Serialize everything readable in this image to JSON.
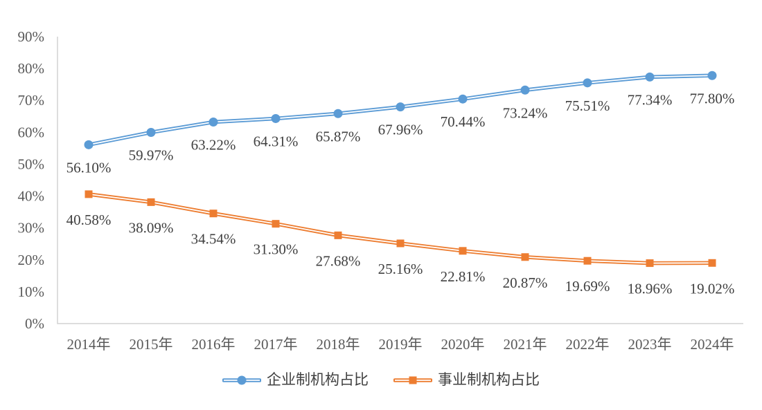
{
  "chart_data": {
    "type": "line",
    "title": "",
    "xlabel": "",
    "ylabel": "",
    "categories": [
      "2014年",
      "2015年",
      "2016年",
      "2017年",
      "2018年",
      "2019年",
      "2020年",
      "2021年",
      "2022年",
      "2023年",
      "2024年"
    ],
    "series": [
      {
        "name": "企业制机构占比",
        "color": "#5B9BD5",
        "marker": "circle",
        "values": [
          56.1,
          59.97,
          63.22,
          64.31,
          65.87,
          67.96,
          70.44,
          73.24,
          75.51,
          77.34,
          77.8
        ],
        "data_labels": [
          "56.10%",
          "59.97%",
          "63.22%",
          "64.31%",
          "65.87%",
          "67.96%",
          "70.44%",
          "73.24%",
          "75.51%",
          "77.34%",
          "77.80%"
        ]
      },
      {
        "name": "事业制机构占比",
        "color": "#ED7D31",
        "marker": "square",
        "values": [
          40.58,
          38.09,
          34.54,
          31.3,
          27.68,
          25.16,
          22.81,
          20.87,
          19.69,
          18.96,
          19.02
        ],
        "data_labels": [
          "40.58%",
          "38.09%",
          "34.54%",
          "31.30%",
          "27.68%",
          "25.16%",
          "22.81%",
          "20.87%",
          "19.69%",
          "18.96%",
          "19.02%"
        ]
      }
    ],
    "ylim": [
      0,
      90
    ],
    "ytick_step": 10,
    "ytick_labels": [
      "0%",
      "10%",
      "20%",
      "30%",
      "40%",
      "50%",
      "60%",
      "70%",
      "80%",
      "90%"
    ],
    "grid": false,
    "legend_position": "bottom",
    "line_style": "double",
    "colors": {
      "axis_line": "#D2D2D2",
      "tick_label": "#595959",
      "data_label": "#404040",
      "line_gap": "#FFFFFF"
    }
  }
}
